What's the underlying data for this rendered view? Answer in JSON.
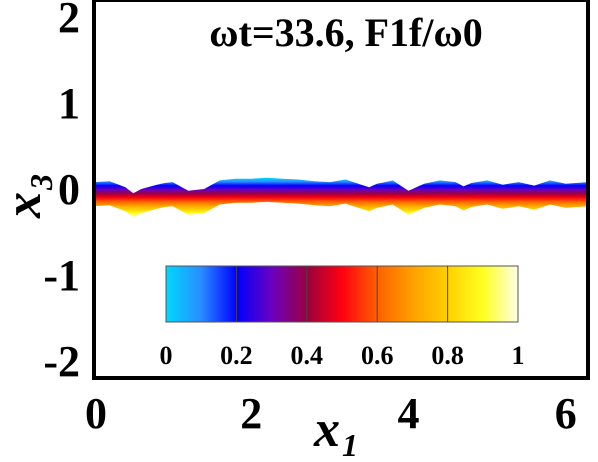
{
  "chart_data": {
    "type": "heatmap",
    "title": "ωt=33.6, F1f/ω0",
    "xlabel": "x",
    "xlabel_sub": "1",
    "ylabel": "x",
    "ylabel_sub": "3",
    "xlim": [
      0,
      6.283
    ],
    "ylim": [
      -2.2,
      2.2
    ],
    "xticks": [
      0,
      2,
      4,
      6
    ],
    "yticks": [
      2,
      1,
      0,
      -1,
      -2
    ],
    "interface": {
      "x": [
        0,
        0.2,
        0.4,
        0.5,
        0.6,
        0.8,
        0.9,
        1.0,
        1.2,
        1.4,
        1.6,
        1.8,
        2.0,
        2.2,
        2.4,
        2.6,
        2.8,
        3.0,
        3.2,
        3.4,
        3.5,
        3.6,
        3.8,
        3.9,
        4.0,
        4.2,
        4.4,
        4.6,
        4.7,
        4.8,
        5.0,
        5.2,
        5.4,
        5.6,
        5.8,
        6.0,
        6.283
      ],
      "y": [
        0.08,
        0.09,
        0.02,
        -0.05,
        0.0,
        0.05,
        0.07,
        0.08,
        -0.02,
        0.0,
        0.1,
        0.12,
        0.12,
        0.13,
        0.12,
        0.11,
        0.09,
        0.08,
        0.11,
        0.05,
        0.02,
        0.06,
        0.1,
        0.04,
        -0.02,
        0.06,
        0.1,
        0.08,
        0.03,
        0.07,
        0.1,
        0.05,
        0.08,
        0.04,
        0.1,
        0.06,
        0.08
      ],
      "thickness": 0.28
    },
    "colorbar": {
      "ticks": [
        "0",
        "0.2",
        "0.4",
        "0.6",
        "0.8",
        "1"
      ],
      "range": [
        0,
        1
      ],
      "colors": [
        "#00d8ff",
        "#2a8cff",
        "#0000ff",
        "#6a00c0",
        "#9a0040",
        "#ff0010",
        "#ff6000",
        "#ffa000",
        "#ffd000",
        "#ffff20",
        "#ffffe8"
      ]
    },
    "grid": false,
    "legend": "none"
  }
}
